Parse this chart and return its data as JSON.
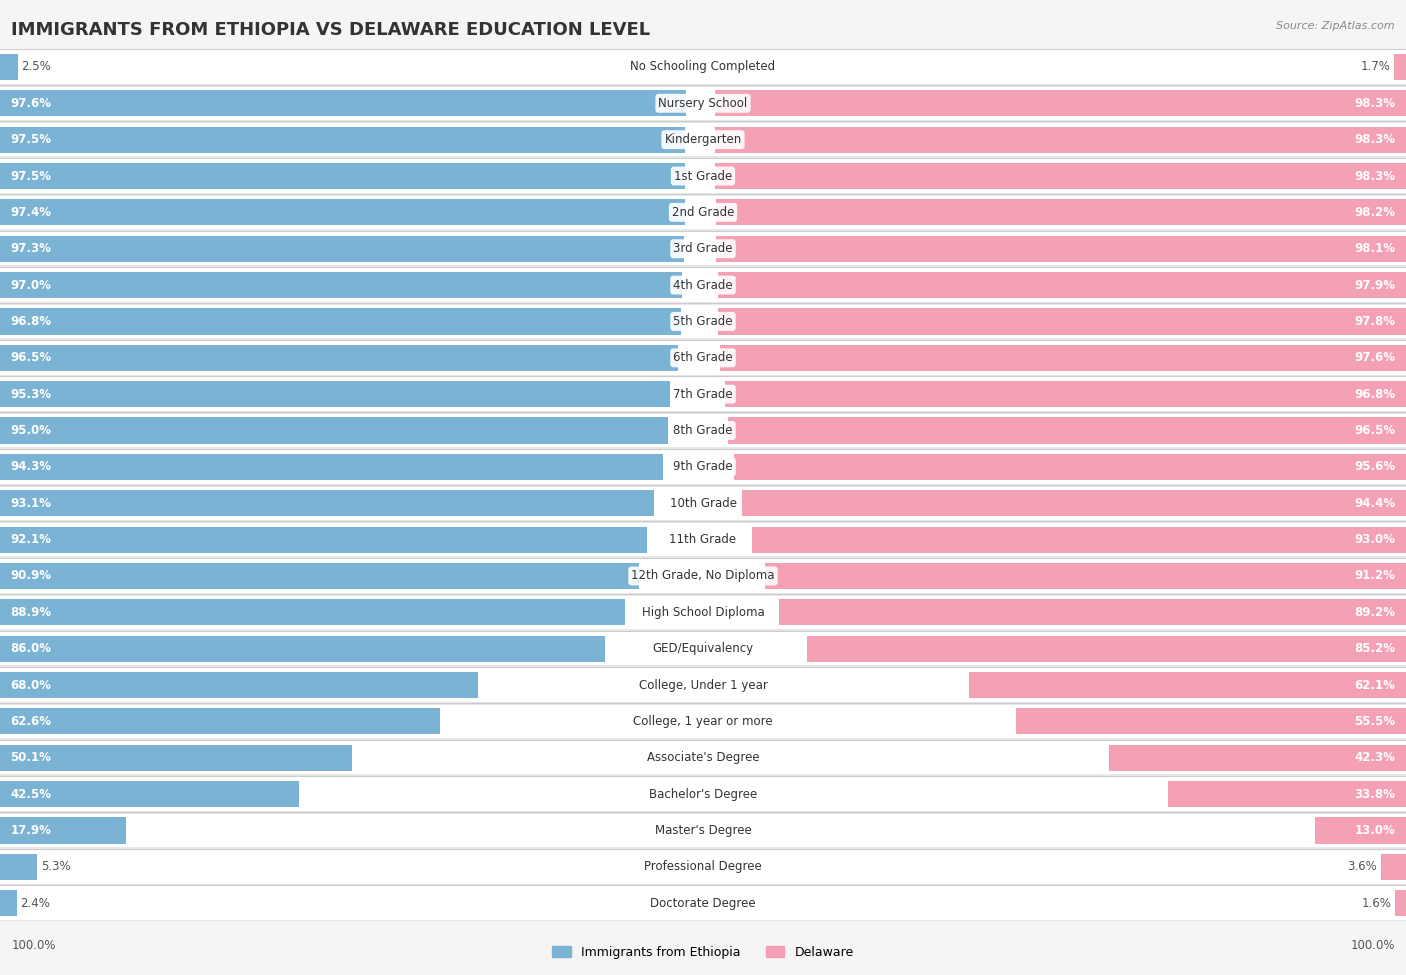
{
  "title": "IMMIGRANTS FROM ETHIOPIA VS DELAWARE EDUCATION LEVEL",
  "source": "Source: ZipAtlas.com",
  "categories": [
    "No Schooling Completed",
    "Nursery School",
    "Kindergarten",
    "1st Grade",
    "2nd Grade",
    "3rd Grade",
    "4th Grade",
    "5th Grade",
    "6th Grade",
    "7th Grade",
    "8th Grade",
    "9th Grade",
    "10th Grade",
    "11th Grade",
    "12th Grade, No Diploma",
    "High School Diploma",
    "GED/Equivalency",
    "College, Under 1 year",
    "College, 1 year or more",
    "Associate's Degree",
    "Bachelor's Degree",
    "Master's Degree",
    "Professional Degree",
    "Doctorate Degree"
  ],
  "ethiopia_values": [
    2.5,
    97.6,
    97.5,
    97.5,
    97.4,
    97.3,
    97.0,
    96.8,
    96.5,
    95.3,
    95.0,
    94.3,
    93.1,
    92.1,
    90.9,
    88.9,
    86.0,
    68.0,
    62.6,
    50.1,
    42.5,
    17.9,
    5.3,
    2.4
  ],
  "delaware_values": [
    1.7,
    98.3,
    98.3,
    98.3,
    98.2,
    98.1,
    97.9,
    97.8,
    97.6,
    96.8,
    96.5,
    95.6,
    94.4,
    93.0,
    91.2,
    89.2,
    85.2,
    62.1,
    55.5,
    42.3,
    33.8,
    13.0,
    3.6,
    1.6
  ],
  "ethiopia_color": "#7ab3d4",
  "delaware_color": "#f4a0b5",
  "background_color": "#f5f5f5",
  "row_bg_color": "#e8e8e8",
  "bar_bg_color": "#ffffff",
  "title_fontsize": 13,
  "label_fontsize": 8.5,
  "value_fontsize": 8.5,
  "legend_fontsize": 9,
  "value_inside_color": "#ffffff",
  "value_outside_color": "#555555"
}
